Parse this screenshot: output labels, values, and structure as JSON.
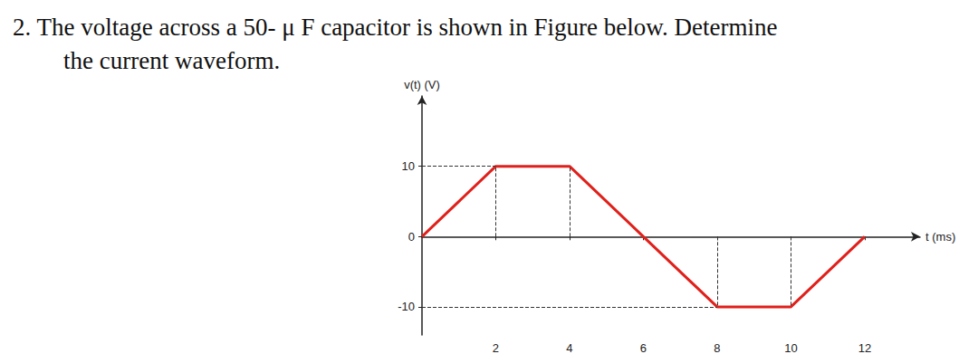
{
  "question": [
    "2. The voltage across a 50- μ F capacitor is shown in Figure below. Determine",
    "the current waveform."
  ],
  "chart_data": {
    "type": "line",
    "x": [
      0,
      2,
      4,
      6,
      8,
      10,
      12
    ],
    "values": [
      0,
      10,
      10,
      0,
      -10,
      -10,
      0
    ],
    "color": "#e0201b",
    "xlabel": "t (ms)",
    "ylabel": "v(t) (V)",
    "xlim": [
      0,
      13.5
    ],
    "xticks": [
      2,
      4,
      6,
      8,
      10,
      12
    ],
    "ylim": [
      -14,
      20
    ],
    "yticks": [
      -10,
      0,
      10
    ],
    "grid": false
  }
}
